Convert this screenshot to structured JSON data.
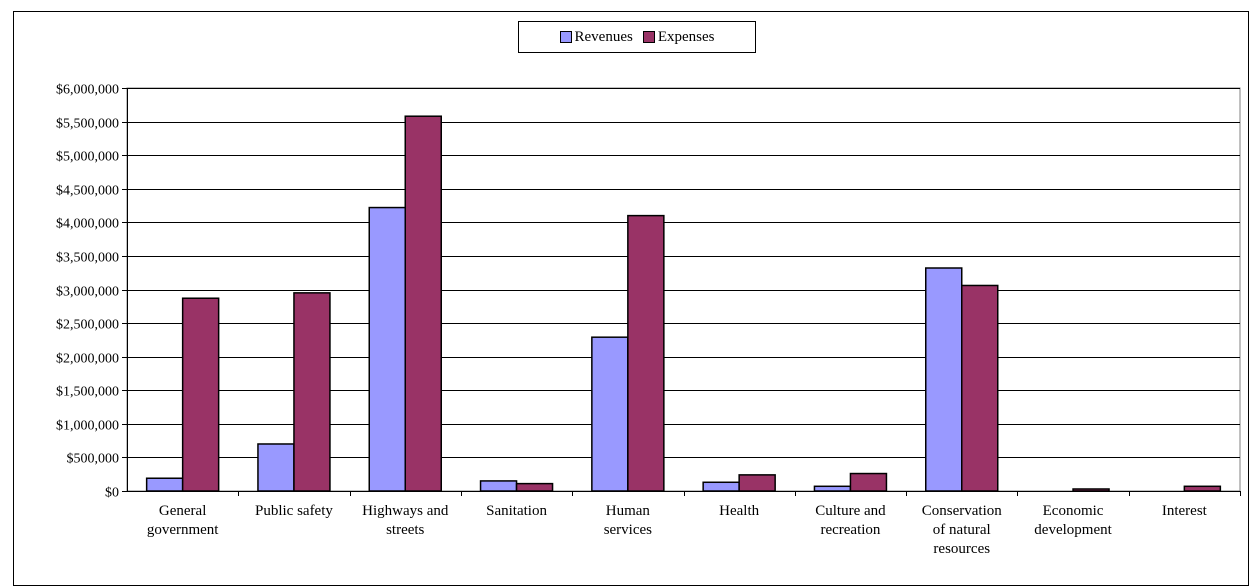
{
  "chart_data": {
    "type": "bar",
    "title": "",
    "xlabel": "",
    "ylabel": "",
    "ylim": [
      0,
      6000000
    ],
    "ytick_step": 500000,
    "yticks": [
      "$0",
      "$500,000",
      "$1,000,000",
      "$1,500,000",
      "$2,000,000",
      "$2,500,000",
      "$3,000,000",
      "$3,500,000",
      "$4,000,000",
      "$4,500,000",
      "$5,000,000",
      "$5,500,000",
      "$6,000,000"
    ],
    "categories": [
      [
        "General",
        "government"
      ],
      [
        "Public safety"
      ],
      [
        "Highways and",
        "streets"
      ],
      [
        "Sanitation"
      ],
      [
        "Human",
        "services"
      ],
      [
        "Health"
      ],
      [
        "Culture and",
        "recreation"
      ],
      [
        "Conservation",
        "of natural",
        "resources"
      ],
      [
        "Economic",
        "development"
      ],
      [
        "Interest"
      ]
    ],
    "series": [
      {
        "name": "Revenues",
        "color": "#9999ff",
        "values": [
          190000,
          700000,
          4220000,
          150000,
          2290000,
          130000,
          70000,
          3320000,
          0,
          0
        ]
      },
      {
        "name": "Expenses",
        "color": "#993366",
        "values": [
          2870000,
          2950000,
          5580000,
          110000,
          4100000,
          240000,
          260000,
          3060000,
          30000,
          70000
        ]
      }
    ],
    "grid": true,
    "legend_position": "top-center"
  }
}
